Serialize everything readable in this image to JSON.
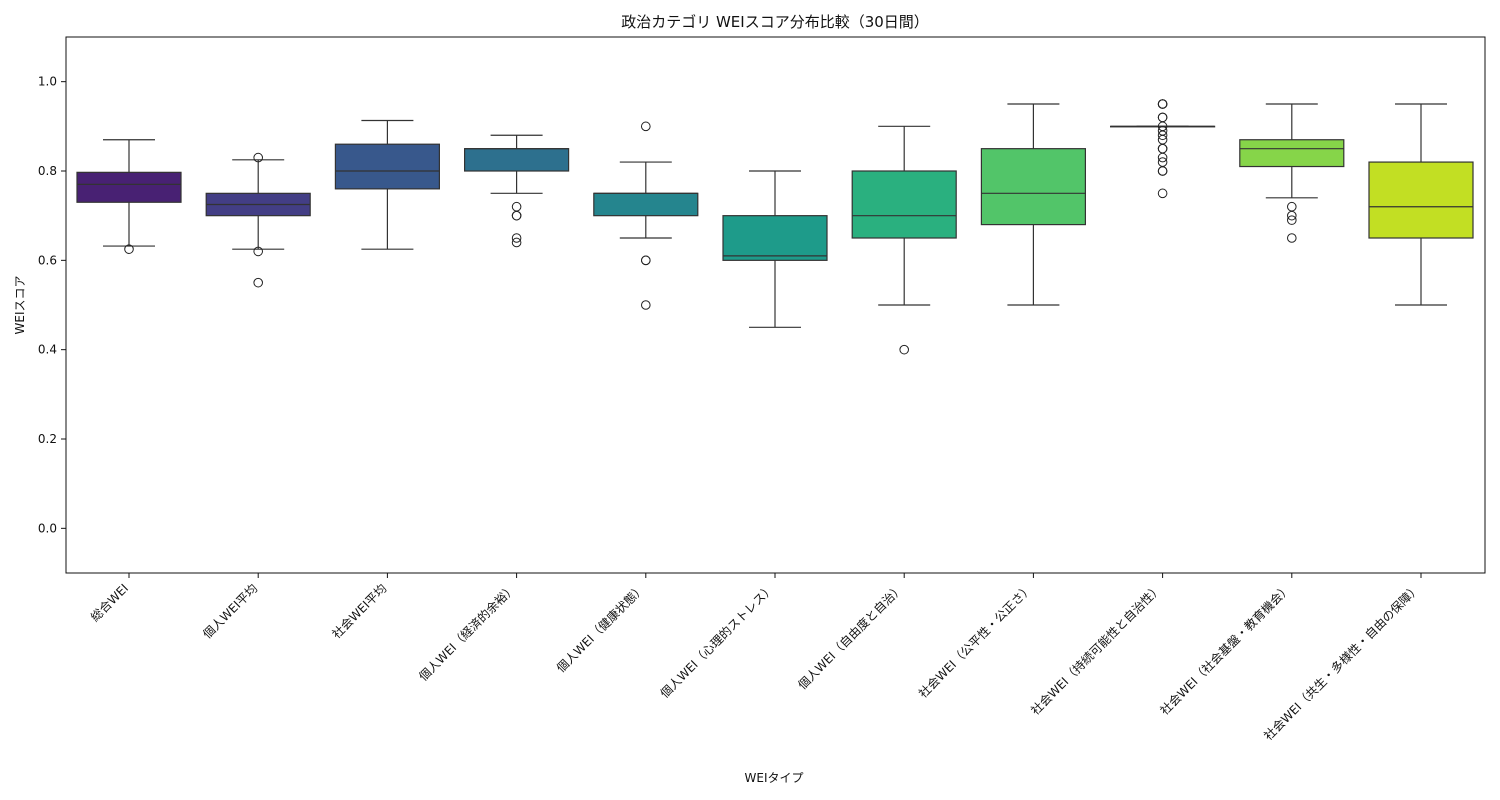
{
  "chart_data": {
    "type": "box",
    "title": "政治カテゴリ WEIスコア分布比較（30日間）",
    "xlabel": "WEIタイプ",
    "ylabel": "WEIスコア",
    "ylim": [
      -0.1,
      1.1
    ],
    "yticks": [
      "0.0",
      "0.2",
      "0.4",
      "0.6",
      "0.8",
      "1.0"
    ],
    "grid": false,
    "categories": [
      "総合WEI",
      "個人WEI平均",
      "社会WEI平均",
      "個人WEI（経済的余裕）",
      "個人WEI（健康状態）",
      "個人WEI（心理的ストレス）",
      "個人WEI（自由度と自治）",
      "社会WEI（公平性・公正さ）",
      "社会WEI（持続可能性と自治性）",
      "社会WEI（社会基盤・教育機会）",
      "社会WEI（共生・多様性・自由の保障）"
    ],
    "boxes": [
      {
        "q1": 0.73,
        "median": 0.77,
        "q3": 0.797,
        "whisker_low": 0.632,
        "whisker_high": 0.87,
        "outliers": [
          0.625
        ],
        "color": "#482173"
      },
      {
        "q1": 0.7,
        "median": 0.725,
        "q3": 0.75,
        "whisker_low": 0.625,
        "whisker_high": 0.825,
        "outliers": [
          0.83,
          0.62,
          0.55
        ],
        "color": "#433e85"
      },
      {
        "q1": 0.76,
        "median": 0.8,
        "q3": 0.86,
        "whisker_low": 0.625,
        "whisker_high": 0.913,
        "outliers": [],
        "color": "#38588c"
      },
      {
        "q1": 0.8,
        "median": 0.85,
        "q3": 0.85,
        "whisker_low": 0.75,
        "whisker_high": 0.88,
        "outliers": [
          0.72,
          0.7,
          0.7,
          0.65,
          0.64
        ],
        "color": "#2d708e"
      },
      {
        "q1": 0.7,
        "median": 0.75,
        "q3": 0.75,
        "whisker_low": 0.65,
        "whisker_high": 0.82,
        "outliers": [
          0.9,
          0.6,
          0.6,
          0.5
        ],
        "color": "#25858e"
      },
      {
        "q1": 0.6,
        "median": 0.61,
        "q3": 0.7,
        "whisker_low": 0.45,
        "whisker_high": 0.8,
        "outliers": [],
        "color": "#1e9b8a"
      },
      {
        "q1": 0.65,
        "median": 0.7,
        "q3": 0.8,
        "whisker_low": 0.5,
        "whisker_high": 0.9,
        "outliers": [
          0.4
        ],
        "color": "#2ab07f"
      },
      {
        "q1": 0.68,
        "median": 0.75,
        "q3": 0.85,
        "whisker_low": 0.5,
        "whisker_high": 0.95,
        "outliers": [],
        "color": "#52c569"
      },
      {
        "q1": 0.9,
        "median": 0.9,
        "q3": 0.9,
        "whisker_low": 0.9,
        "whisker_high": 0.9,
        "outliers": [
          0.95,
          0.95,
          0.95,
          0.92,
          0.92,
          0.9,
          0.89,
          0.88,
          0.87,
          0.85,
          0.85,
          0.83,
          0.82,
          0.8,
          0.8,
          0.75
        ],
        "color": "#86d549"
      },
      {
        "q1": 0.81,
        "median": 0.85,
        "q3": 0.87,
        "whisker_low": 0.74,
        "whisker_high": 0.95,
        "outliers": [
          0.72,
          0.7,
          0.69,
          0.65
        ],
        "color": "#86d549"
      },
      {
        "q1": 0.65,
        "median": 0.72,
        "q3": 0.82,
        "whisker_low": 0.5,
        "whisker_high": 0.95,
        "outliers": [],
        "color": "#c2df23"
      }
    ]
  }
}
